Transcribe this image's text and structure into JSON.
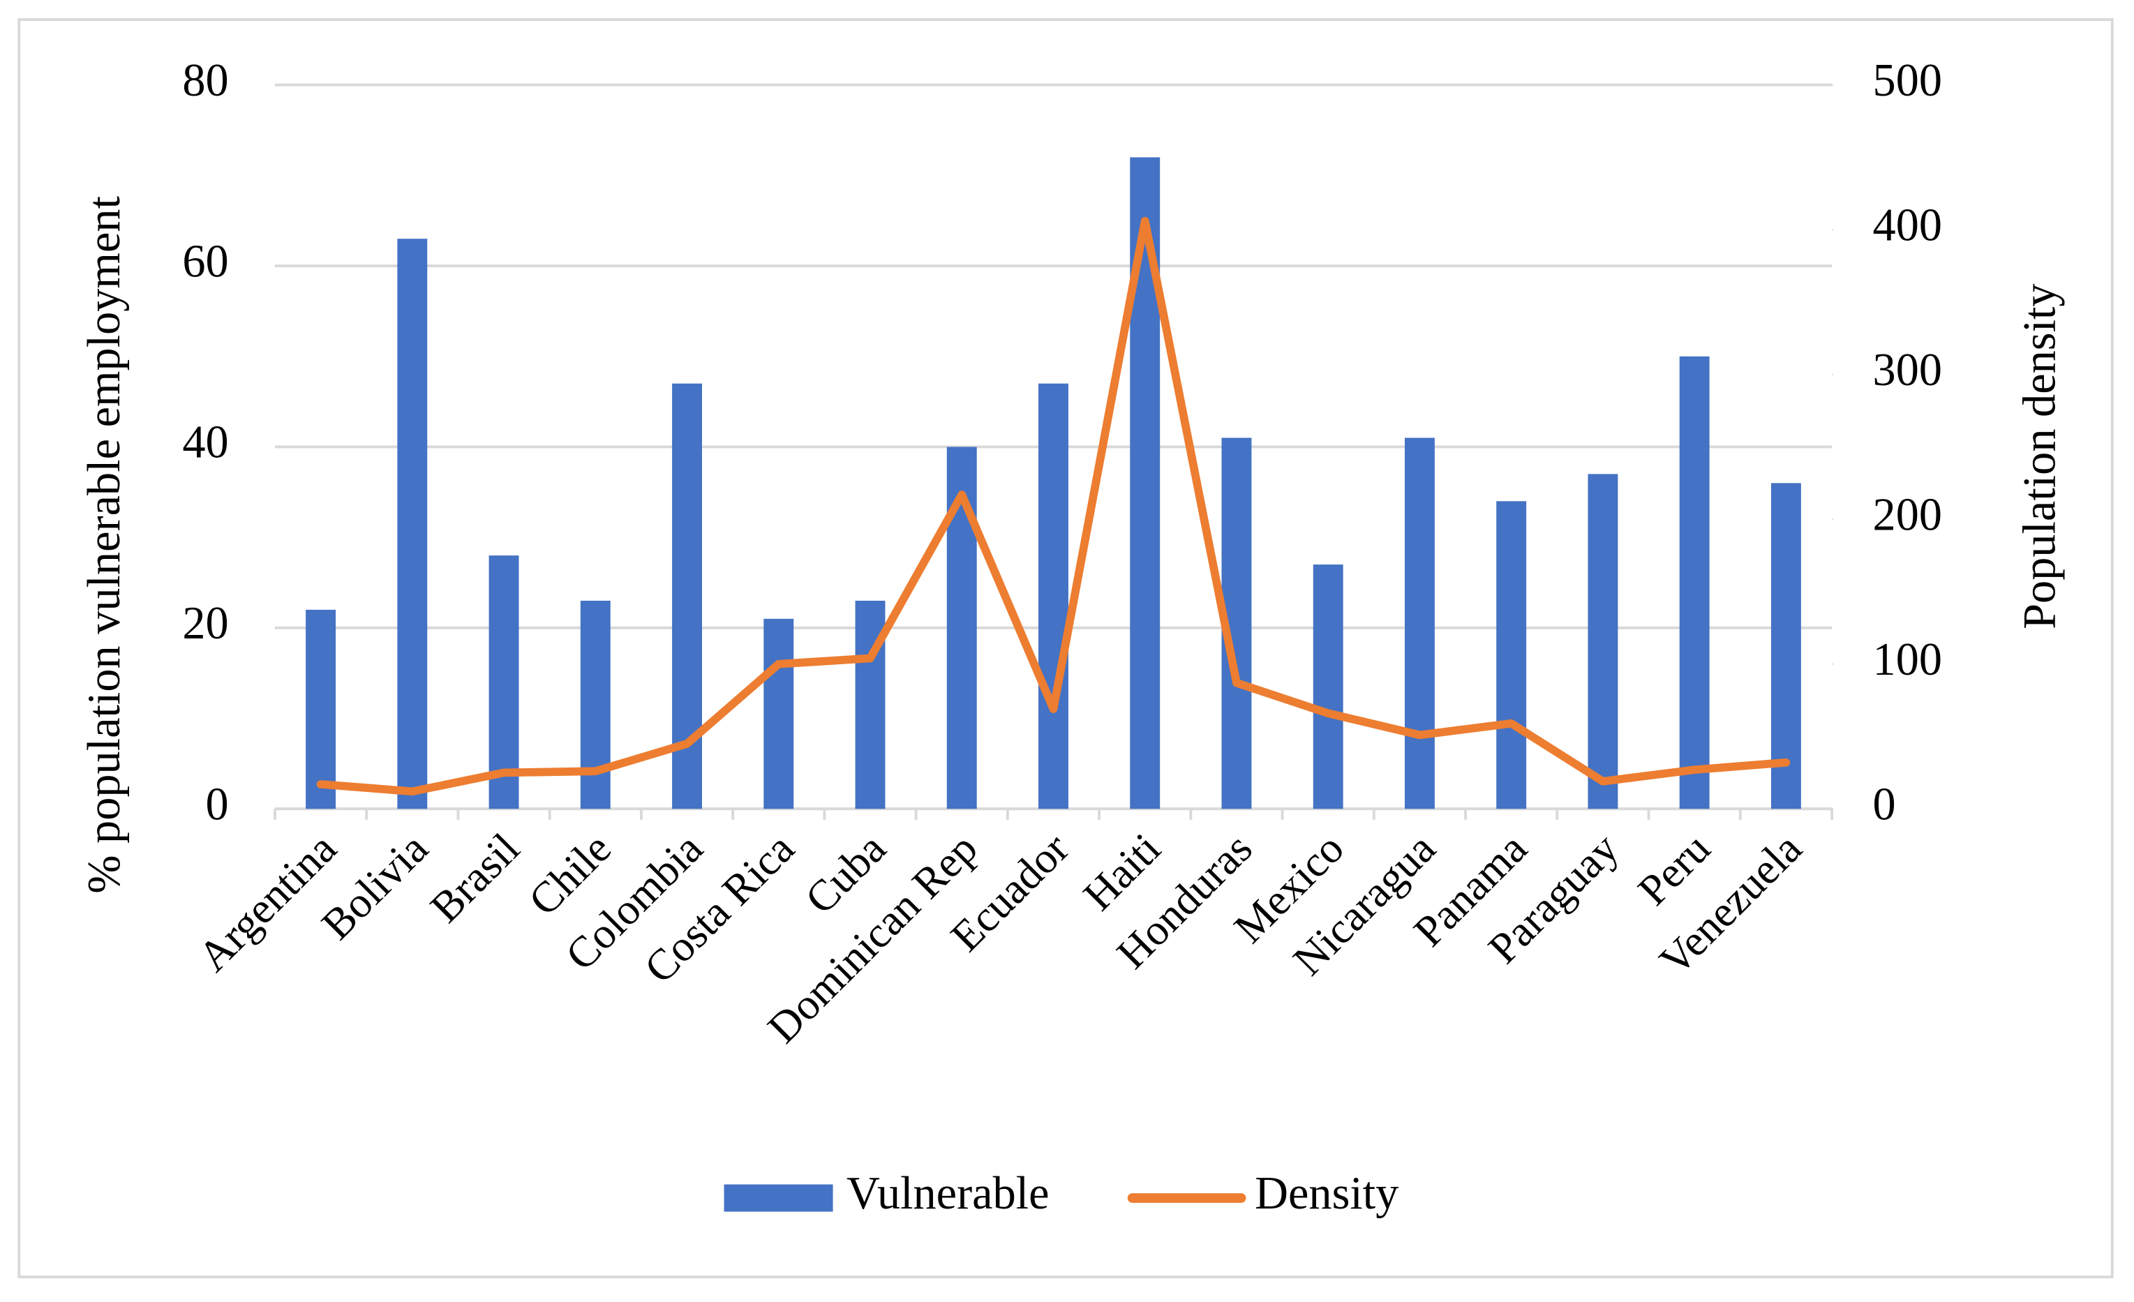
{
  "chart_data": {
    "type": "bar",
    "y_label": "%  population vulnerable employment",
    "y2_label": "Population density",
    "categories": [
      "Argentina",
      "Bolivia",
      "Brasil",
      "Chile",
      "Colombia",
      "Costa Rica",
      "Cuba",
      "Dominican Rep",
      "Ecuador",
      "Haiti",
      "Honduras",
      "Mexico",
      "Nicaragua",
      "Panama",
      "Paraguay",
      "Peru",
      "Venezuela"
    ],
    "series": [
      {
        "name": "Vulnerable",
        "type": "bar",
        "color": "#4472c4",
        "values": [
          22,
          63,
          28,
          23,
          47,
          21,
          23,
          40,
          47,
          72,
          41,
          27,
          41,
          34,
          37,
          50,
          36
        ]
      },
      {
        "name": "Density",
        "type": "line",
        "axis": "y2",
        "color": "#ed7d31",
        "values": [
          17,
          12,
          25,
          26,
          45,
          100,
          104,
          217,
          69,
          406,
          87,
          66,
          51,
          59,
          19,
          27,
          32
        ]
      }
    ],
    "ylim": [
      0,
      80
    ],
    "yticks": [
      0,
      20,
      40,
      60,
      80
    ],
    "y2lim": [
      0,
      500
    ],
    "y2ticks": [
      0,
      100,
      200,
      300,
      400,
      500
    ],
    "grid": true,
    "legend": "bottom"
  }
}
